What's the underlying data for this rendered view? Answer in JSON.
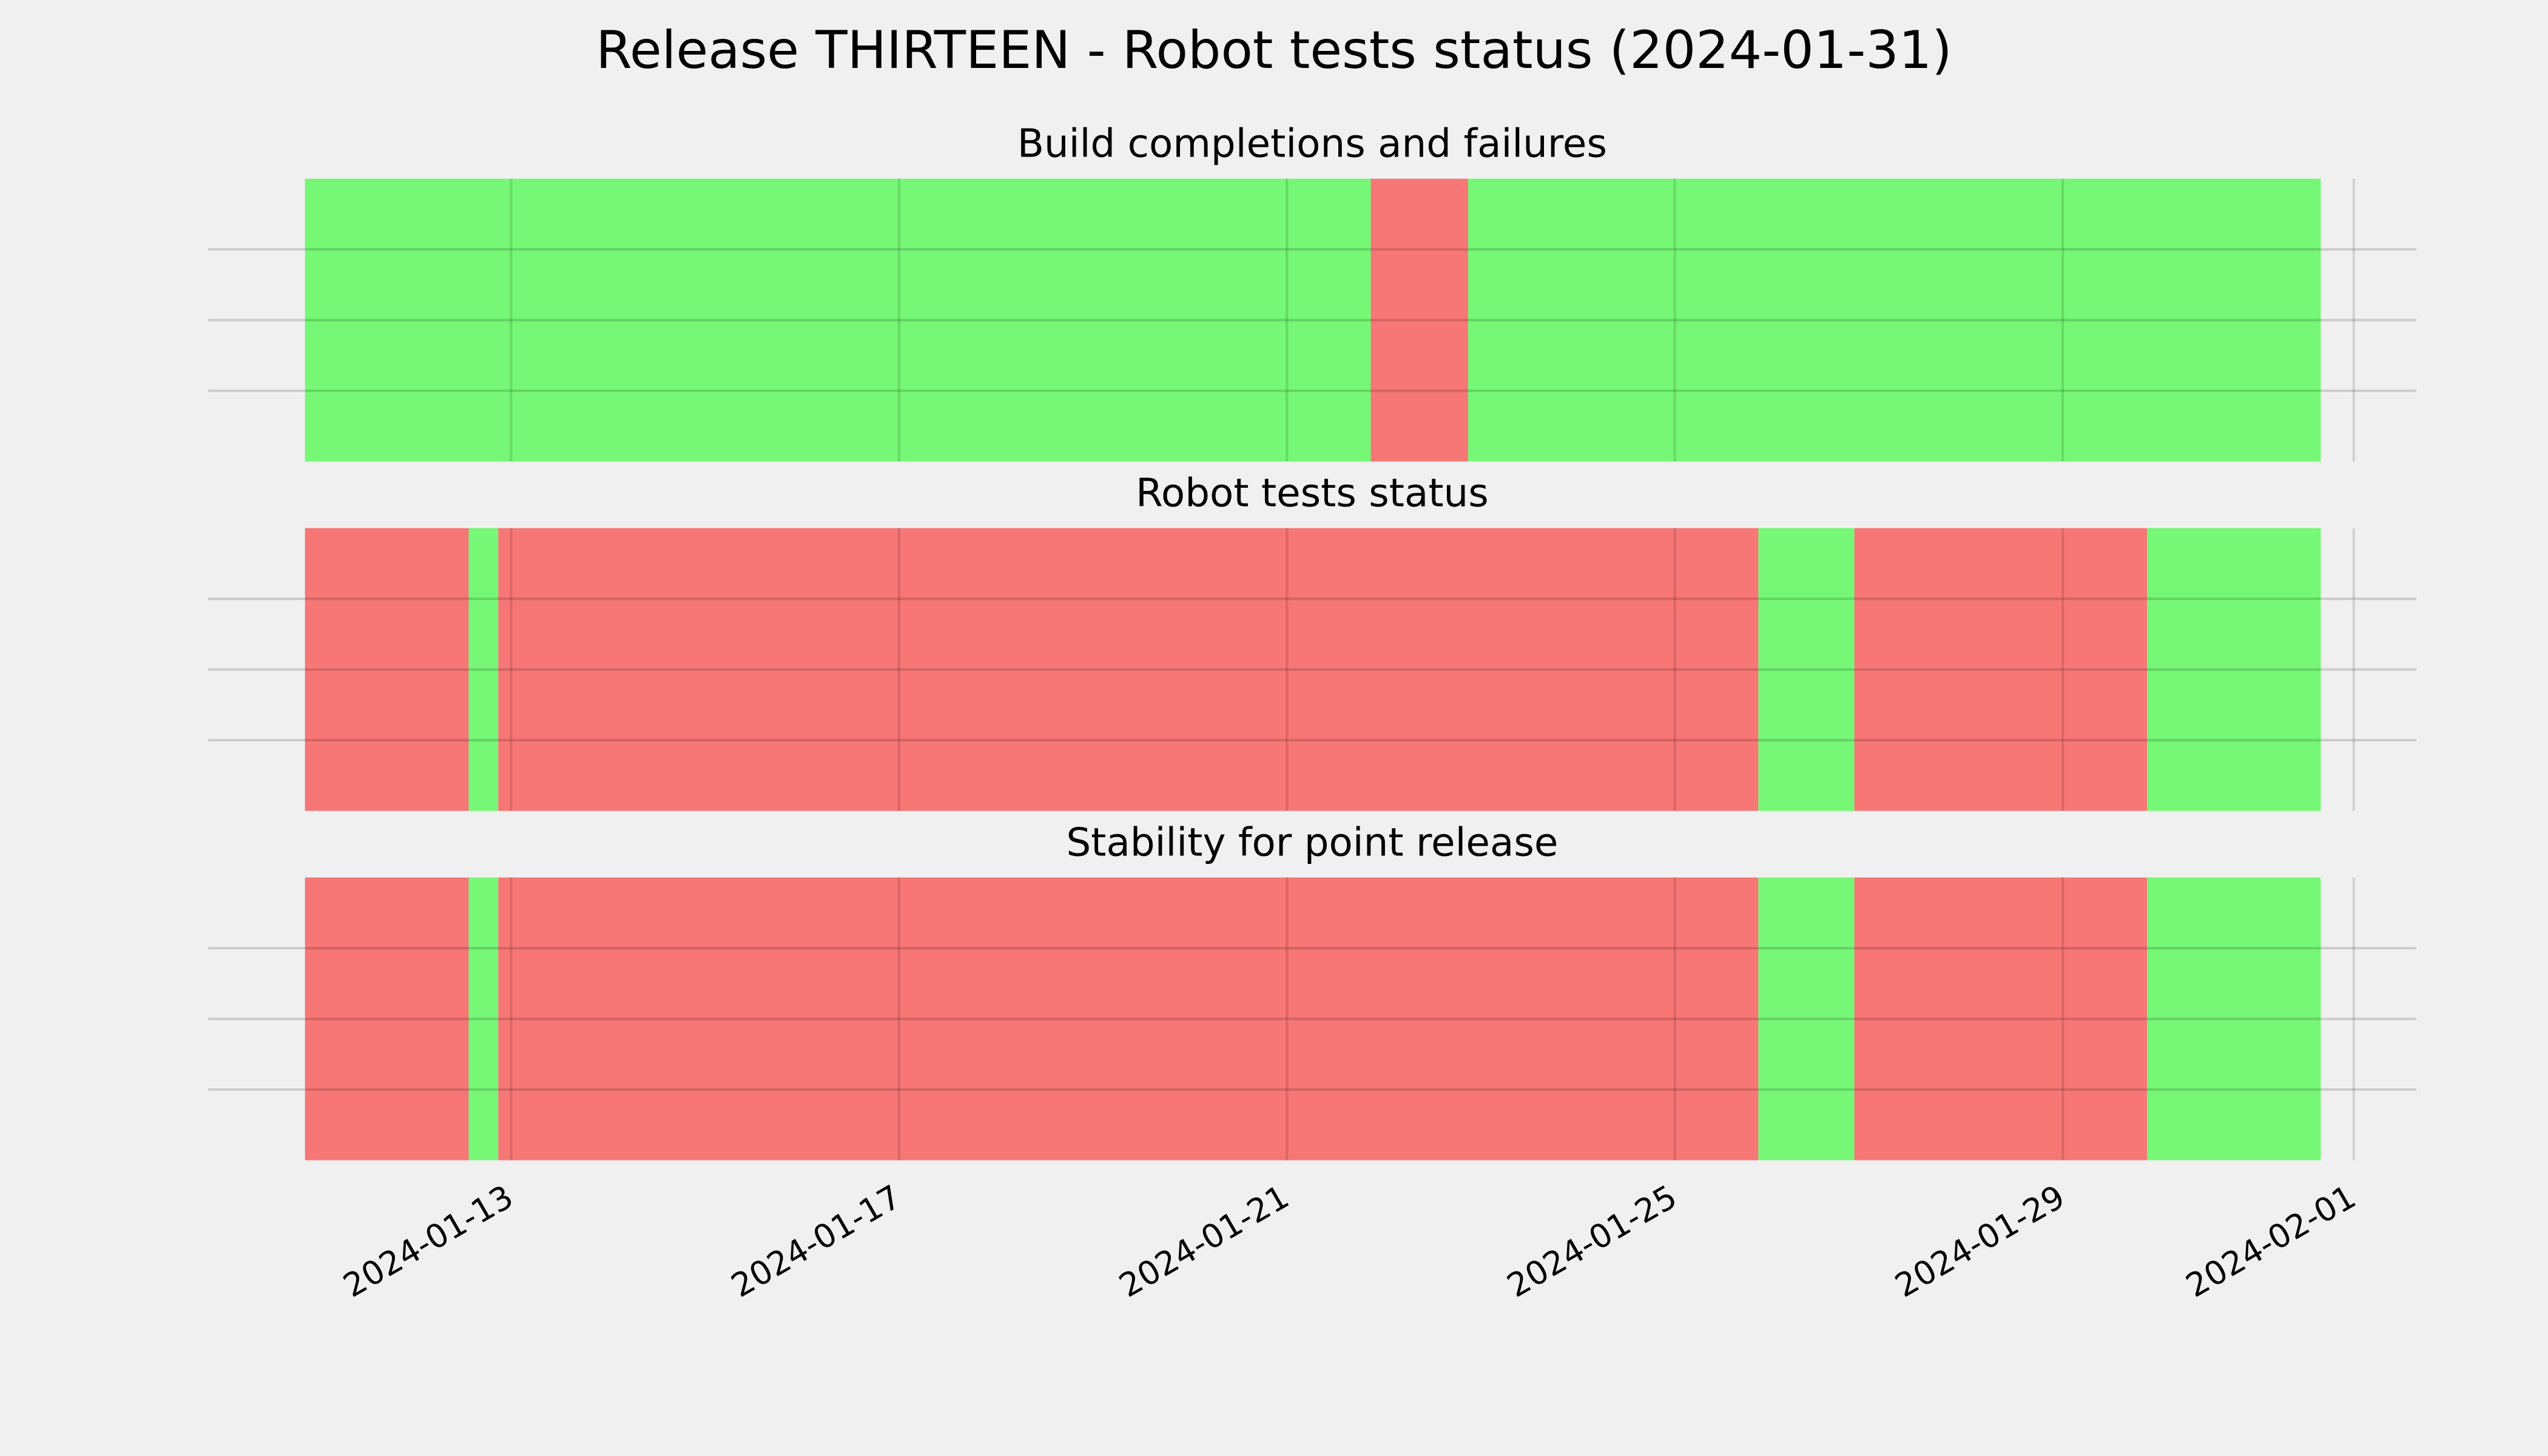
{
  "title": "Release THIRTEEN - Robot tests status (2024-01-31)",
  "chart_data": [
    {
      "type": "timeline",
      "title": "Build completions and failures",
      "xlim": [
        "2024-01-09T21:00",
        "2024-02-01T15:30"
      ],
      "xticks": [
        "2024-01-13",
        "2024-01-17",
        "2024-01-21",
        "2024-01-25",
        "2024-01-29",
        "2024-02-01"
      ],
      "xtick_labels": false,
      "ylim": [
        0,
        1
      ],
      "yticks": [
        0.25,
        0.5,
        0.75
      ],
      "grid": true,
      "segments": [
        {
          "start": "2024-01-10T21:00",
          "end": "2024-01-21T20:45",
          "color": "#76f776"
        },
        {
          "start": "2024-01-21T20:45",
          "end": "2024-01-22T20:50",
          "color": "#f77676"
        },
        {
          "start": "2024-01-22T20:50",
          "end": "2024-01-31T15:50",
          "color": "#76f776"
        }
      ]
    },
    {
      "type": "timeline",
      "title": "Robot tests status",
      "xlim": [
        "2024-01-09T21:00",
        "2024-02-01T15:30"
      ],
      "xticks": [
        "2024-01-13",
        "2024-01-17",
        "2024-01-21",
        "2024-01-25",
        "2024-01-29",
        "2024-02-01"
      ],
      "xtick_labels": false,
      "ylim": [
        0,
        1
      ],
      "yticks": [
        0.25,
        0.5,
        0.75
      ],
      "grid": true,
      "segments": [
        {
          "start": "2024-01-10T21:00",
          "end": "2024-01-12T13:30",
          "color": "#f77676"
        },
        {
          "start": "2024-01-12T13:30",
          "end": "2024-01-12T20:50",
          "color": "#76f776"
        },
        {
          "start": "2024-01-12T20:50",
          "end": "2024-01-25T20:40",
          "color": "#f77676"
        },
        {
          "start": "2024-01-25T20:40",
          "end": "2024-01-26T20:25",
          "color": "#76f776"
        },
        {
          "start": "2024-01-26T20:25",
          "end": "2024-01-29T20:50",
          "color": "#f77676"
        },
        {
          "start": "2024-01-29T20:50",
          "end": "2024-01-31T15:50",
          "color": "#76f776"
        }
      ]
    },
    {
      "type": "timeline",
      "title": "Stability for point release",
      "xlim": [
        "2024-01-09T21:00",
        "2024-02-01T15:30"
      ],
      "xticks": [
        "2024-01-13",
        "2024-01-17",
        "2024-01-21",
        "2024-01-25",
        "2024-01-29",
        "2024-02-01"
      ],
      "xtick_labels": true,
      "ylim": [
        0,
        1
      ],
      "yticks": [
        0.25,
        0.5,
        0.75
      ],
      "grid": true,
      "segments": [
        {
          "start": "2024-01-10T21:00",
          "end": "2024-01-12T13:30",
          "color": "#f77676"
        },
        {
          "start": "2024-01-12T13:30",
          "end": "2024-01-12T20:50",
          "color": "#76f776"
        },
        {
          "start": "2024-01-12T20:50",
          "end": "2024-01-25T20:40",
          "color": "#f77676"
        },
        {
          "start": "2024-01-25T20:40",
          "end": "2024-01-26T20:25",
          "color": "#76f776"
        },
        {
          "start": "2024-01-26T20:25",
          "end": "2024-01-29T20:50",
          "color": "#f77676"
        },
        {
          "start": "2024-01-29T20:50",
          "end": "2024-01-31T15:50",
          "color": "#76f776"
        }
      ]
    }
  ]
}
